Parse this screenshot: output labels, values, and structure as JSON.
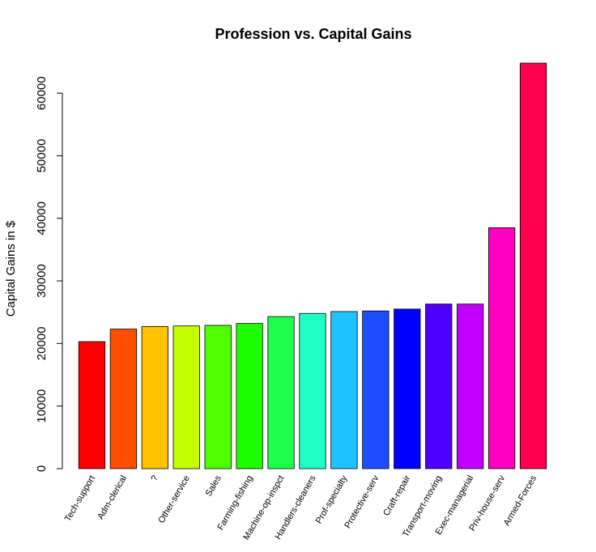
{
  "chart_data": {
    "type": "bar",
    "title": "Profession vs. Capital Gains",
    "xlabel": "",
    "ylabel": "Capital Gains in $",
    "ylim": [
      0,
      65000
    ],
    "yticks": [
      0,
      10000,
      20000,
      30000,
      40000,
      50000,
      60000
    ],
    "ytick_labels": [
      "0",
      "10000",
      "20000",
      "30000",
      "40000",
      "50000",
      "60000"
    ],
    "grid": false,
    "categories": [
      "Tech-support",
      "Adm-clerical",
      "?",
      "Other-service",
      "Sales",
      "Farming-fishing",
      "Machine-op-inspct",
      "Handlers-cleaners",
      "Prof-specialty",
      "Protective-serv",
      "Craft-repair",
      "Transport-moving",
      "Exec-managerial",
      "Priv-house-serv",
      "Armed-Forces"
    ],
    "values": [
      20300,
      22300,
      22700,
      22800,
      22900,
      23200,
      24300,
      24800,
      25100,
      25200,
      25500,
      26300,
      26300,
      38500,
      64800
    ],
    "colors": [
      "#FF0000",
      "#FF4D00",
      "#FFC300",
      "#C3FF00",
      "#4DFF00",
      "#1EFF00",
      "#1EFF4D",
      "#1EFFC3",
      "#1EC3FF",
      "#1E4DFF",
      "#0000FF",
      "#4D00FF",
      "#C300FF",
      "#FF00C3",
      "#FF004D"
    ]
  }
}
